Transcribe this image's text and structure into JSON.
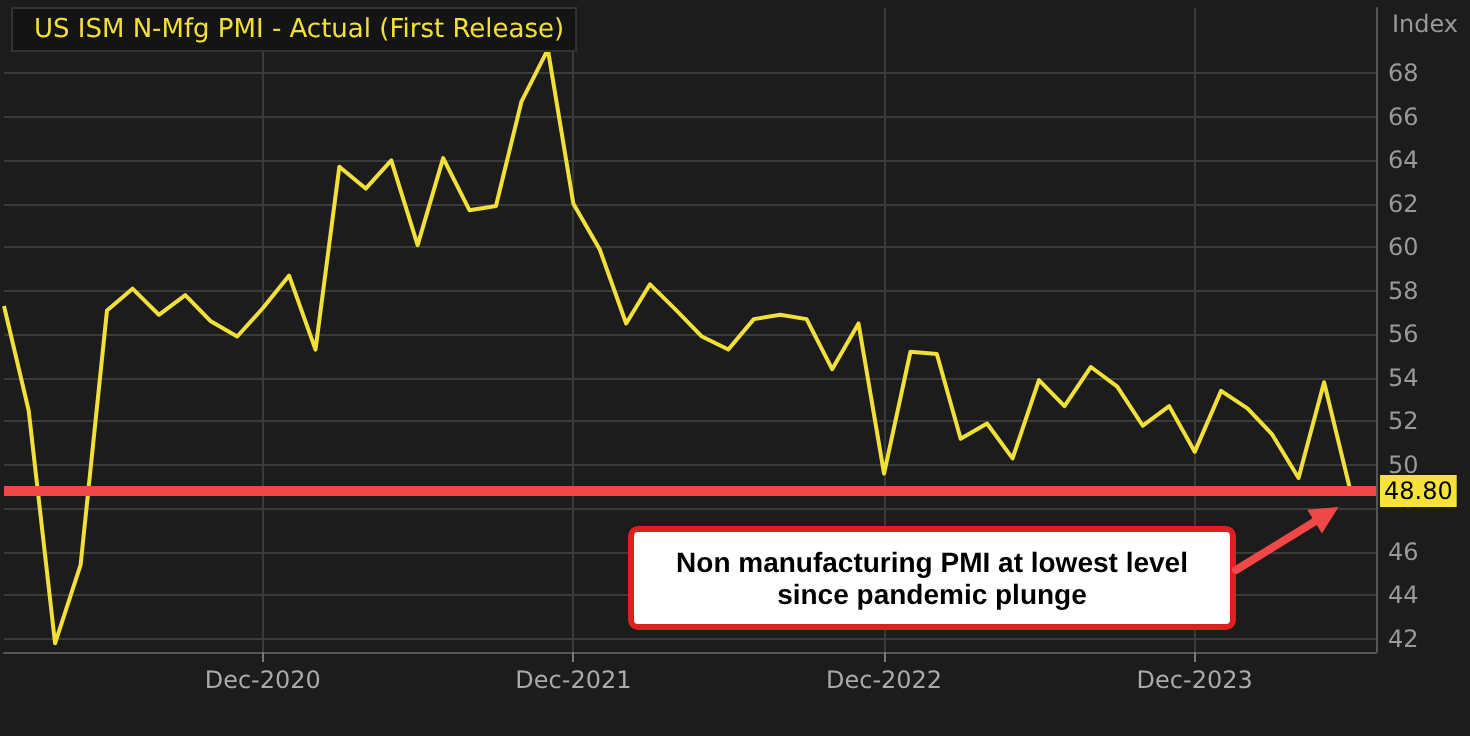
{
  "chart_data": {
    "type": "line",
    "ylabel": "Index",
    "x": [
      "2020-02",
      "2020-03",
      "2020-04",
      "2020-05",
      "2020-06",
      "2020-07",
      "2020-08",
      "2020-09",
      "2020-10",
      "2020-11",
      "2020-12",
      "2021-01",
      "2021-02",
      "2021-03",
      "2021-04",
      "2021-05",
      "2021-06",
      "2021-07",
      "2021-08",
      "2021-09",
      "2021-10",
      "2021-11",
      "2021-12",
      "2022-01",
      "2022-02",
      "2022-03",
      "2022-04",
      "2022-05",
      "2022-06",
      "2022-07",
      "2022-08",
      "2022-09",
      "2022-10",
      "2022-11",
      "2022-12",
      "2023-01",
      "2023-02",
      "2023-03",
      "2023-04",
      "2023-05",
      "2023-06",
      "2023-07",
      "2023-08",
      "2023-09",
      "2023-10",
      "2023-11",
      "2023-12",
      "2024-01",
      "2024-02",
      "2024-03",
      "2024-04",
      "2024-05",
      "2024-06"
    ],
    "series": [
      {
        "name": "US ISM N-Mfg PMI - Actual (First Release)",
        "color": "#f2e03a",
        "values": [
          57.3,
          52.5,
          41.8,
          45.4,
          57.1,
          58.1,
          56.9,
          57.8,
          56.6,
          55.9,
          57.2,
          58.7,
          55.3,
          63.7,
          62.7,
          64.0,
          60.1,
          64.1,
          61.7,
          61.9,
          66.7,
          69.1,
          62.0,
          59.9,
          56.5,
          58.3,
          57.1,
          55.9,
          55.3,
          56.7,
          56.9,
          56.7,
          54.4,
          56.5,
          49.6,
          55.2,
          55.1,
          51.2,
          51.9,
          50.3,
          53.9,
          52.7,
          54.5,
          53.6,
          51.8,
          52.7,
          50.6,
          53.4,
          52.6,
          51.4,
          49.4,
          53.8,
          48.8
        ]
      }
    ],
    "xlim": [
      "2020-02",
      "2024-07"
    ],
    "xticks": [
      {
        "value": "2020-12",
        "label": "Dec-2020"
      },
      {
        "value": "2021-12",
        "label": "Dec-2021"
      },
      {
        "value": "2022-12",
        "label": "Dec-2022"
      },
      {
        "value": "2023-12",
        "label": "Dec-2023"
      }
    ],
    "ylim": [
      41.4,
      71
    ],
    "yticks": [
      42,
      44,
      46,
      {
        "value": 48,
        "label": null
      },
      50,
      52,
      54,
      56,
      58,
      60,
      62,
      64,
      66,
      68
    ],
    "ref_lines": [
      {
        "axis": "y",
        "value": 48.8,
        "label": "48.80",
        "color": "#f04848"
      }
    ],
    "annotations": [
      "Non manufacturing PMI at lowest level since pandemic plunge"
    ],
    "grid": true,
    "legend": "top left",
    "marker": "none",
    "line_style": "solid"
  }
}
